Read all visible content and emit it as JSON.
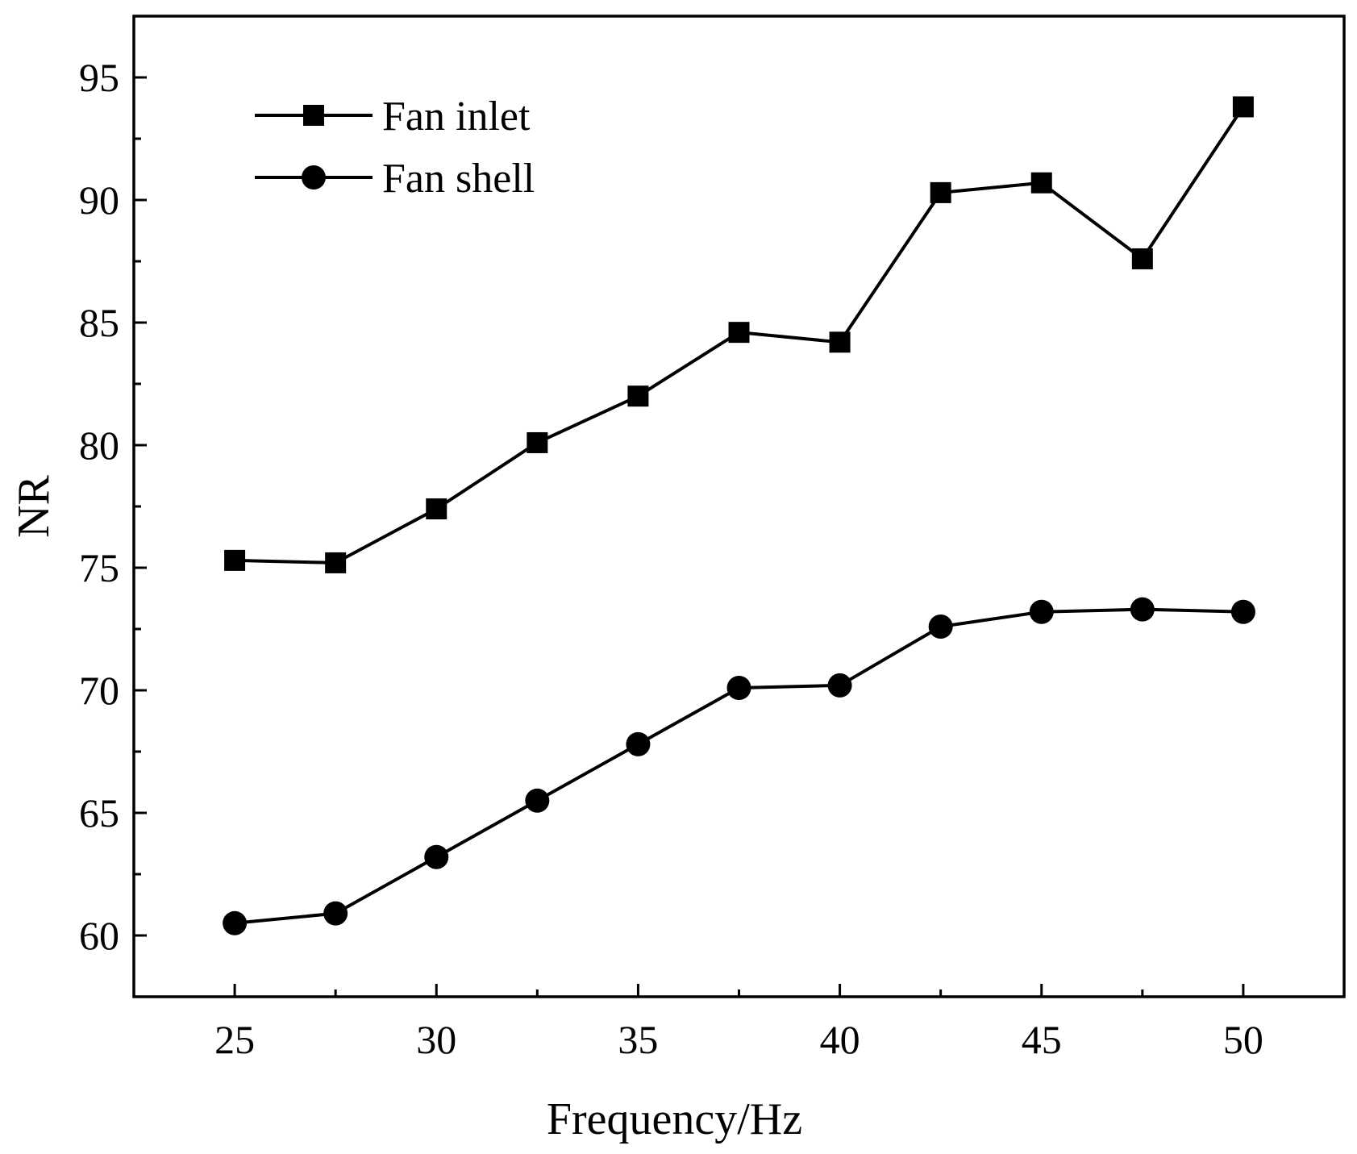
{
  "chart_data": {
    "type": "line",
    "title": "",
    "xlabel": "Frequency/Hz",
    "ylabel": "NR",
    "xlim": [
      22.5,
      52.5
    ],
    "ylim": [
      57.5,
      97.5
    ],
    "x_major_ticks": [
      25,
      30,
      35,
      40,
      45,
      50
    ],
    "x_minor_ticks": [
      27.5,
      32.5,
      37.5,
      42.5,
      47.5
    ],
    "y_major_ticks": [
      60,
      65,
      70,
      75,
      80,
      85,
      90,
      95
    ],
    "y_minor_ticks": [
      62.5,
      67.5,
      72.5,
      77.5,
      82.5,
      87.5,
      92.5
    ],
    "x_tick_labels": [
      "25",
      "30",
      "35",
      "40",
      "45",
      "50"
    ],
    "y_tick_labels": [
      "60",
      "65",
      "70",
      "75",
      "80",
      "85",
      "90",
      "95"
    ],
    "grid": false,
    "legend_position": "top-left",
    "x": [
      25,
      27.5,
      30,
      32.5,
      35,
      37.5,
      40,
      42.5,
      45,
      47.5,
      50
    ],
    "series": [
      {
        "name": "Fan inlet",
        "marker": "square",
        "color": "#000000",
        "values": [
          75.3,
          75.2,
          77.4,
          80.1,
          82.0,
          84.6,
          84.2,
          90.3,
          90.7,
          87.6,
          93.8
        ]
      },
      {
        "name": "Fan shell",
        "marker": "circle",
        "color": "#000000",
        "values": [
          60.5,
          60.9,
          63.2,
          65.5,
          67.8,
          70.1,
          70.2,
          72.6,
          73.2,
          73.3,
          73.2
        ]
      }
    ]
  }
}
